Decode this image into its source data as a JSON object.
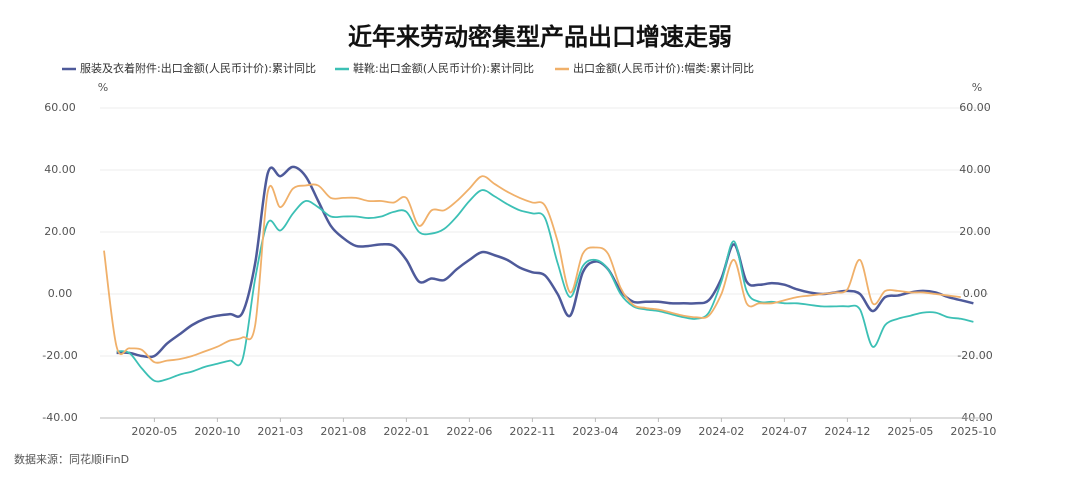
{
  "chart_data": {
    "type": "line",
    "title": "近年来劳动密集型产品出口增速走弱",
    "source": "数据来源：同花顺iFinD",
    "y_unit": "%",
    "y2_unit": "%",
    "x": [
      "2020-01",
      "2020-02",
      "2020-03",
      "2020-04",
      "2020-05",
      "2020-06",
      "2020-07",
      "2020-08",
      "2020-09",
      "2020-10",
      "2020-11",
      "2020-12",
      "2021-01",
      "2021-02",
      "2021-03",
      "2021-04",
      "2021-05",
      "2021-06",
      "2021-07",
      "2021-08",
      "2021-09",
      "2021-10",
      "2021-11",
      "2021-12",
      "2022-01",
      "2022-02",
      "2022-03",
      "2022-04",
      "2022-05",
      "2022-06",
      "2022-07",
      "2022-08",
      "2022-09",
      "2022-10",
      "2022-11",
      "2022-12",
      "2023-01",
      "2023-02",
      "2023-03",
      "2023-04",
      "2023-05",
      "2023-06",
      "2023-07",
      "2023-08",
      "2023-09",
      "2023-10",
      "2023-11",
      "2023-12",
      "2024-01",
      "2024-02",
      "2024-03",
      "2024-04",
      "2024-05",
      "2024-06",
      "2024-07",
      "2024-08",
      "2024-09",
      "2024-10",
      "2024-11",
      "2024-12",
      "2025-01",
      "2025-02",
      "2025-03",
      "2025-04",
      "2025-05",
      "2025-06",
      "2025-07",
      "2025-08",
      "2025-09",
      "2025-10"
    ],
    "xticks": [
      "2020-05",
      "2020-10",
      "2021-03",
      "2021-08",
      "2022-01",
      "2022-06",
      "2022-11",
      "2023-04",
      "2023-09",
      "2024-02",
      "2024-07",
      "2024-12",
      "2025-05",
      "2025-10"
    ],
    "ylim": [
      -40,
      60
    ],
    "yticks": [
      {
        "value": -40,
        "label": "-40.00"
      },
      {
        "value": -20,
        "label": "-20.00"
      },
      {
        "value": 0,
        "label": "0.00"
      },
      {
        "value": 20,
        "label": "20.00"
      },
      {
        "value": 40,
        "label": "40.00"
      },
      {
        "value": 60,
        "label": "60.00"
      }
    ],
    "y2lim": [
      -40,
      60
    ],
    "y2ticks": [
      {
        "value": -40,
        "label": "-40.00"
      },
      {
        "value": -20,
        "label": "-20.00"
      },
      {
        "value": 0,
        "label": "0.00"
      },
      {
        "value": 20,
        "label": "20.00"
      },
      {
        "value": 40,
        "label": "40.00"
      },
      {
        "value": 60,
        "label": "60.00"
      }
    ],
    "grid": true,
    "legend": "top",
    "series": [
      {
        "name": "服装及衣着附件:出口金额(人民币计价):累计同比",
        "color": "#4e5a9a",
        "values": [
          null,
          -19,
          -19,
          -20,
          -20,
          -16,
          -13,
          -10,
          -8,
          -7,
          -6.5,
          -6,
          10,
          39,
          38,
          41,
          38,
          30,
          22,
          18,
          15.5,
          15.5,
          16,
          15.5,
          11,
          4,
          5,
          4.5,
          8,
          11,
          13.5,
          12.5,
          11,
          8.5,
          7,
          6,
          0,
          -7,
          7,
          10.5,
          8,
          1,
          -2.5,
          -2.5,
          -2.5,
          -3,
          -3,
          -3,
          -2,
          5,
          16,
          4,
          3,
          3.5,
          3,
          1.5,
          0.5,
          0,
          0.5,
          1,
          0,
          -5.5,
          -1,
          -0.5,
          0.5,
          1,
          0.5,
          -1,
          -2,
          -3
        ]
      },
      {
        "name": "鞋靴:出口金额(人民币计价):累计同比",
        "color": "#3cc0b5",
        "values": [
          null,
          -18.5,
          -19,
          -24,
          -28,
          -27.5,
          -26,
          -25,
          -23.5,
          -22.5,
          -21.5,
          -21,
          5,
          23,
          20.5,
          26,
          30,
          28,
          25,
          25,
          25,
          24.5,
          25,
          26.5,
          26.5,
          20,
          19.5,
          21,
          25,
          30,
          33.5,
          31.5,
          29,
          27,
          26,
          24.5,
          10,
          -1,
          9,
          11,
          8,
          0,
          -4,
          -5,
          -5.5,
          -6.5,
          -7.5,
          -8,
          -6,
          4,
          17,
          1,
          -2.5,
          -2.5,
          -3,
          -3,
          -3.5,
          -4,
          -4,
          -4,
          -5,
          -17,
          -10,
          -8,
          -7,
          -6,
          -6,
          -7.5,
          -8,
          -9
        ]
      },
      {
        "name": "出口金额(人民币计价):帽类:累计同比",
        "color": "#f0b06a",
        "values": [
          14,
          -17,
          -17.5,
          -18,
          -22,
          -21.5,
          -21,
          -20,
          -18.5,
          -17,
          -15,
          -14,
          -10,
          33,
          28,
          34,
          35,
          35,
          31,
          31,
          31,
          30,
          30,
          29.5,
          31,
          22,
          27,
          27,
          30,
          34,
          38,
          35.5,
          33,
          31,
          29.5,
          28.5,
          17,
          0.5,
          13,
          15,
          13,
          2,
          -3.5,
          -4.5,
          -5,
          -6,
          -7,
          -7.5,
          -7,
          0,
          11,
          -3,
          -3,
          -3,
          -2,
          -1,
          -0.5,
          0,
          0.5,
          1.5,
          11,
          -3,
          1,
          1,
          0.5,
          0.5,
          0,
          -0.5,
          -1,
          null
        ]
      }
    ]
  }
}
